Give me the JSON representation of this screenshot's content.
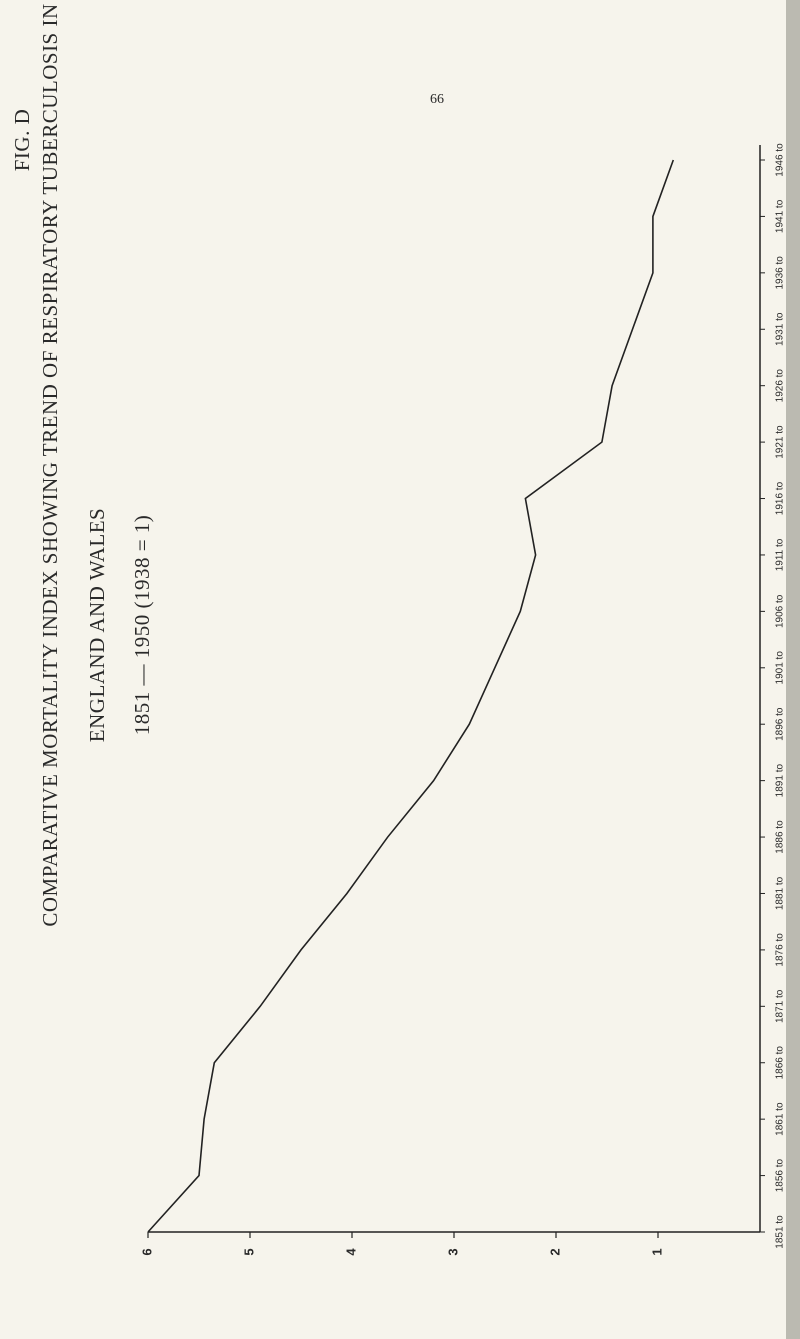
{
  "page_label": "FIG. D",
  "page_number": "66",
  "chart_data": {
    "type": "line",
    "title": "COMPARATIVE MORTALITY INDEX SHOWING TREND OF RESPIRATORY TUBERCULOSIS IN",
    "subtitle": "ENGLAND AND WALES",
    "note": "1851 — 1950 (1938 = 1)",
    "categories": [
      "1851 to",
      "1856 to",
      "1861 to",
      "1866 to",
      "1871 to",
      "1876 to",
      "1881 to",
      "1886 to",
      "1891 to",
      "1896 to",
      "1901 to",
      "1906 to",
      "1911 to",
      "1916 to",
      "1921 to",
      "1926 to",
      "1931 to",
      "1936 to",
      "1941 to",
      "1946 to"
    ],
    "series": [
      {
        "color": "#222222",
        "values": [
          6.0,
          5.5,
          5.45,
          5.35,
          4.9,
          4.5,
          4.05,
          3.65,
          3.2,
          2.85,
          2.6,
          2.35,
          2.2,
          2.3,
          1.55,
          1.45,
          1.25,
          1.05,
          1.05,
          0.85
        ]
      }
    ],
    "ylim": [
      0,
      6
    ],
    "yticks": [
      1,
      2,
      3,
      4,
      5,
      6
    ],
    "grid": false
  }
}
